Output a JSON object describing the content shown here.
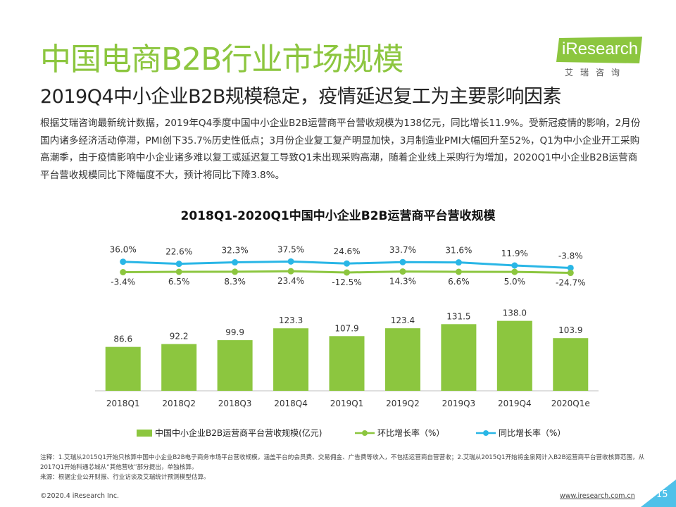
{
  "header": {
    "title": "中国电商B2B行业市场规模",
    "subtitle": "2019Q4中小企业B2B规模稳定，疫情延迟复工为主要影响因素"
  },
  "logo": {
    "brand": "iResearch",
    "tagline": "艾瑞咨询"
  },
  "description": "根据艾瑞咨询最新统计数据，2019年Q4季度中国中小企业B2B运营商平台营收规模为138亿元，同比增长11.9%。受新冠疫情的影响，2月份国内诸多经济活动停滞，PMI创下35.7%历史性低点；3月份企业复工复产明显加快，3月制造业PMI大幅回升至52%，Q1为中小企业开工采购高潮季，由于疫情影响中小企业诸多难以复工或延迟复工导致Q1未出现采购高潮，随着企业线上采购行为增加，2020Q1中小企业B2B运营商平台营收规模同比下降幅度不大，预计将同比下降3.8%。",
  "chart_data": {
    "type": "bar",
    "title": "2018Q1-2020Q1中国中小企业B2B运营商平台营收规模",
    "categories": [
      "2018Q1",
      "2018Q2",
      "2018Q3",
      "2018Q4",
      "2019Q1",
      "2019Q2",
      "2019Q3",
      "2019Q4",
      "2020Q1e"
    ],
    "series": [
      {
        "name": "中国中小企业B2B运营商平台营收规模(亿元)",
        "type": "bar",
        "values": [
          86.6,
          92.2,
          99.9,
          123.3,
          107.9,
          123.4,
          131.5,
          138.0,
          103.9
        ],
        "labels": [
          "86.6",
          "92.2",
          "99.9",
          "123.3",
          "107.9",
          "123.4",
          "131.5",
          "138.0",
          "103.9"
        ]
      },
      {
        "name": "环比增长率（%）",
        "type": "line",
        "values": [
          -3.4,
          6.5,
          8.3,
          23.4,
          -12.5,
          14.3,
          6.6,
          5.0,
          -24.7
        ],
        "labels": [
          "-3.4%",
          "6.5%",
          "8.3%",
          "23.4%",
          "-12.5%",
          "14.3%",
          "6.6%",
          "5.0%",
          "-24.7%"
        ]
      },
      {
        "name": "同比增长率（%）",
        "type": "line",
        "values": [
          36.0,
          22.6,
          32.3,
          37.5,
          24.6,
          33.7,
          31.6,
          11.9,
          -3.8
        ],
        "labels": [
          "36.0%",
          "22.6%",
          "32.3%",
          "37.5%",
          "24.6%",
          "33.7%",
          "31.6%",
          "11.9%",
          "-3.8%"
        ]
      }
    ],
    "legend_position": "bottom",
    "grid": false
  },
  "notes": {
    "note": "注释：1.艾瑞从2015Q1开始只核算中国中小企业B2B电子商务市场平台营收规模，涵盖平台的会员费、交易佣金、广告费等收入，不包括运营商自营营收；2.艾瑞从2015Q1开始将金泉网计入B2B运营商平台营收核算范围，从2017Q1开始科通芯城从“其他营收”部分提出，单独核算。",
    "source": "来源：根据企业公开财报、行业访谈及艾瑞统计预测模型估算。"
  },
  "footer": {
    "copyright": "©2020.4 iResearch Inc.",
    "url": "www.iresearch.com.cn",
    "page": "15"
  },
  "colors": {
    "green": "#8cc63f",
    "bar": "#8cc63f",
    "qoq_line": "#8cc63f",
    "yoy_line": "#29b6e6",
    "page_box": "#4fc1e9"
  }
}
